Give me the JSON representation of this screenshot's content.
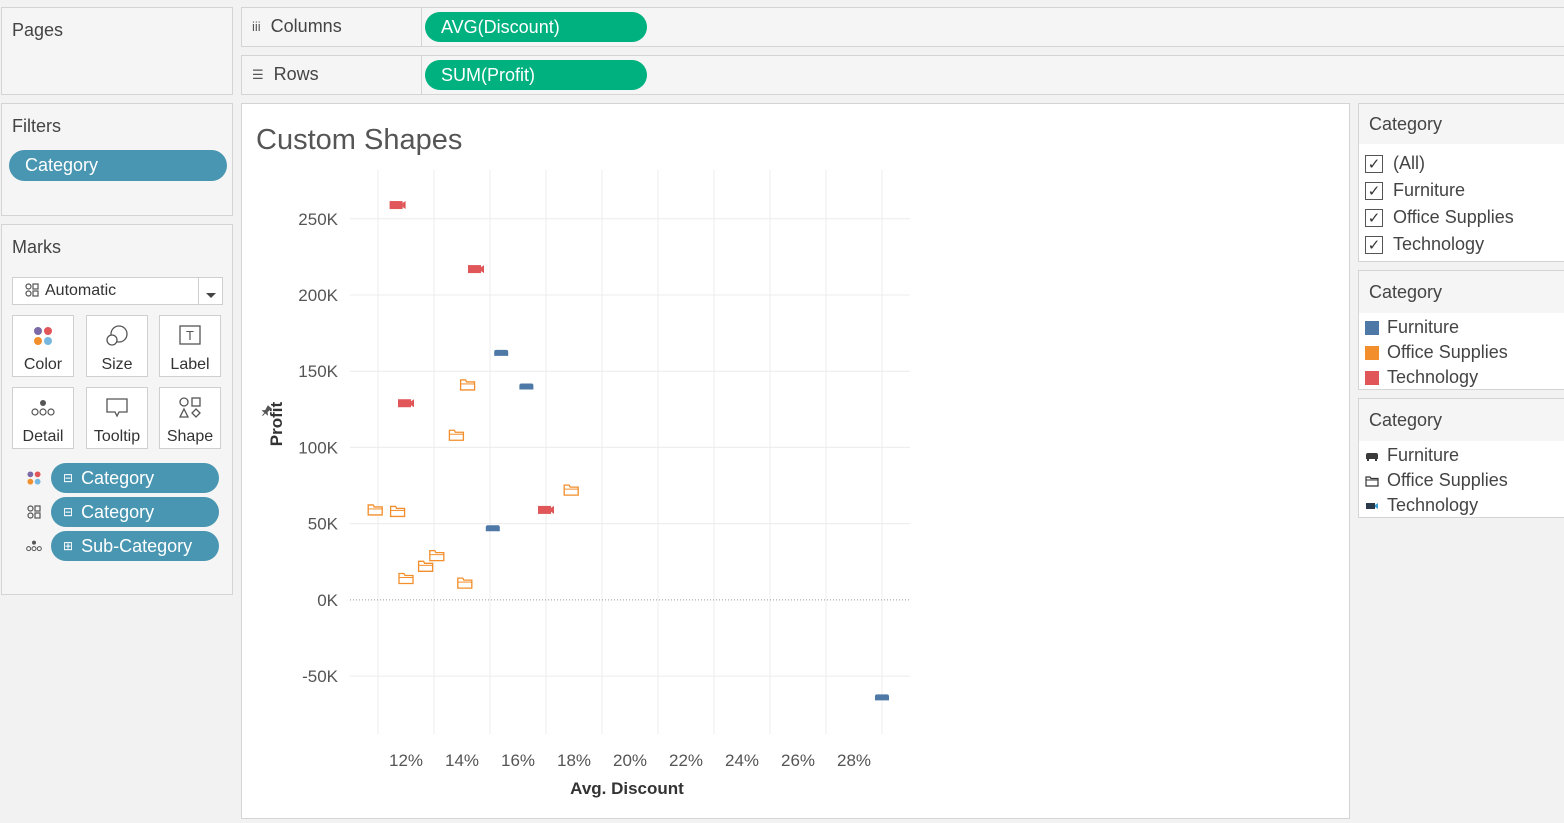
{
  "pages": {
    "title": "Pages"
  },
  "shelves": {
    "columns_label": "Columns",
    "columns_pill": "AVG(Discount)",
    "rows_label": "Rows",
    "rows_pill": "SUM(Profit)"
  },
  "filters": {
    "title": "Filters",
    "pill": "Category"
  },
  "marks": {
    "title": "Marks",
    "mark_type": "Automatic",
    "buttons": {
      "color": "Color",
      "size": "Size",
      "label": "Label",
      "detail": "Detail",
      "tooltip": "Tooltip",
      "shape": "Shape"
    },
    "fields": [
      {
        "role": "color",
        "prefix": "⊟",
        "label": "Category"
      },
      {
        "role": "shape",
        "prefix": "⊟",
        "label": "Category"
      },
      {
        "role": "detail",
        "prefix": "⊞",
        "label": "Sub-Category"
      }
    ]
  },
  "viz": {
    "title": "Custom Shapes"
  },
  "filter_card": {
    "title": "Category",
    "items": [
      "(All)",
      "Furniture",
      "Office Supplies",
      "Technology"
    ]
  },
  "color_legend": {
    "title": "Category",
    "items": [
      {
        "label": "Furniture",
        "color": "#4e79a7"
      },
      {
        "label": "Office Supplies",
        "color": "#f28e2b"
      },
      {
        "label": "Technology",
        "color": "#e15759"
      }
    ]
  },
  "shape_legend": {
    "title": "Category",
    "items": [
      {
        "label": "Furniture",
        "icon": "sofa-icon"
      },
      {
        "label": "Office Supplies",
        "icon": "folder-icon"
      },
      {
        "label": "Technology",
        "icon": "projector-icon"
      }
    ]
  },
  "chart_data": {
    "type": "scatter",
    "title": "Custom Shapes",
    "xlabel": "Avg. Discount",
    "ylabel": "Profit",
    "x_ticks": [
      "12%",
      "14%",
      "16%",
      "18%",
      "20%",
      "22%",
      "24%",
      "26%",
      "28%"
    ],
    "y_ticks": [
      "250K",
      "200K",
      "150K",
      "100K",
      "50K",
      "0K",
      "-50K"
    ],
    "xlim": [
      0.1,
      0.3
    ],
    "ylim": [
      -88000,
      282000
    ],
    "x_tick_values": [
      0.12,
      0.14,
      0.16,
      0.18,
      0.2,
      0.22,
      0.24,
      0.26,
      0.28
    ],
    "y_tick_values": [
      250000,
      200000,
      150000,
      100000,
      50000,
      0,
      -50000
    ],
    "series": [
      {
        "name": "Furniture",
        "color": "#4e79a7",
        "shape": "sofa",
        "points": [
          {
            "x": 0.154,
            "y": 162000
          },
          {
            "x": 0.163,
            "y": 140000
          },
          {
            "x": 0.151,
            "y": 47000
          },
          {
            "x": 0.29,
            "y": -64000
          }
        ]
      },
      {
        "name": "Office Supplies",
        "color": "#f28e2b",
        "shape": "folder",
        "points": [
          {
            "x": 0.142,
            "y": 141000
          },
          {
            "x": 0.138,
            "y": 108000
          },
          {
            "x": 0.179,
            "y": 72000
          },
          {
            "x": 0.109,
            "y": 59000
          },
          {
            "x": 0.117,
            "y": 58000
          },
          {
            "x": 0.12,
            "y": 14000
          },
          {
            "x": 0.127,
            "y": 22000
          },
          {
            "x": 0.131,
            "y": 29000
          },
          {
            "x": 0.141,
            "y": 11000
          }
        ]
      },
      {
        "name": "Technology",
        "color": "#e15759",
        "shape": "projector",
        "points": [
          {
            "x": 0.117,
            "y": 259000
          },
          {
            "x": 0.145,
            "y": 217000
          },
          {
            "x": 0.12,
            "y": 129000
          },
          {
            "x": 0.17,
            "y": 59000
          }
        ]
      }
    ]
  }
}
